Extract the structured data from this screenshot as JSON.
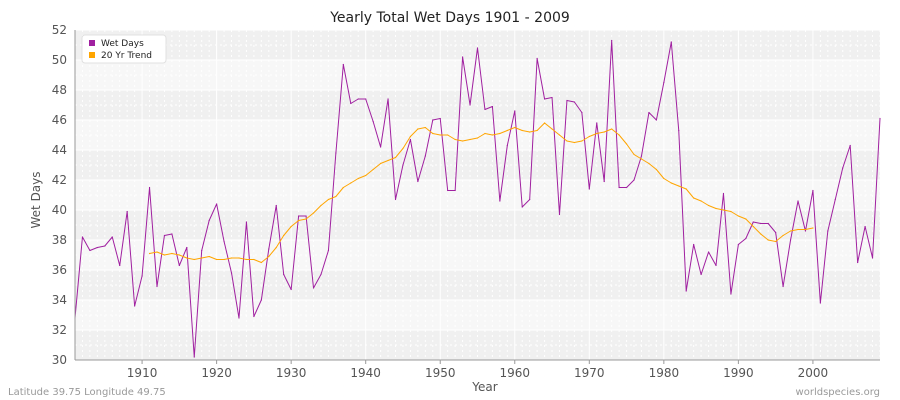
{
  "chart_data": {
    "type": "line",
    "title": "Yearly Total Wet Days 1901 - 2009",
    "xlabel": "Year",
    "ylabel": "Wet Days",
    "xlim": [
      1901,
      2009
    ],
    "ylim": [
      30,
      52
    ],
    "xticks": [
      1910,
      1920,
      1930,
      1940,
      1950,
      1960,
      1970,
      1980,
      1990,
      2000
    ],
    "yticks": [
      30,
      32,
      34,
      36,
      38,
      40,
      42,
      44,
      46,
      48,
      50,
      52
    ],
    "grid": true,
    "legend_position": "top-left",
    "series": [
      {
        "name": "Wet Days",
        "color": "#a020a0",
        "x": [
          1901,
          1902,
          1903,
          1904,
          1905,
          1906,
          1907,
          1908,
          1909,
          1910,
          1911,
          1912,
          1913,
          1914,
          1915,
          1916,
          1917,
          1918,
          1919,
          1920,
          1921,
          1922,
          1923,
          1924,
          1925,
          1926,
          1927,
          1928,
          1929,
          1930,
          1931,
          1932,
          1933,
          1934,
          1935,
          1936,
          1937,
          1938,
          1939,
          1940,
          1941,
          1942,
          1943,
          1944,
          1945,
          1946,
          1947,
          1948,
          1949,
          1950,
          1951,
          1952,
          1953,
          1954,
          1955,
          1956,
          1957,
          1958,
          1959,
          1960,
          1961,
          1962,
          1963,
          1964,
          1965,
          1966,
          1967,
          1968,
          1969,
          1970,
          1971,
          1972,
          1973,
          1974,
          1975,
          1976,
          1977,
          1978,
          1979,
          1980,
          1981,
          1982,
          1983,
          1984,
          1985,
          1986,
          1987,
          1988,
          1989,
          1990,
          1991,
          1992,
          1993,
          1994,
          1995,
          1996,
          1997,
          1998,
          1999,
          2000,
          2001,
          2002,
          2003,
          2004,
          2005,
          2006,
          2007,
          2008,
          2009
        ],
        "values": [
          32.8,
          38.2,
          37.3,
          37.5,
          37.6,
          38.2,
          36.3,
          39.9,
          33.6,
          35.6,
          41.5,
          34.9,
          38.3,
          38.4,
          36.3,
          37.5,
          30.2,
          37.3,
          39.3,
          40.4,
          37.9,
          35.8,
          32.8,
          39.2,
          32.9,
          34.0,
          37.4,
          40.3,
          35.7,
          34.7,
          39.6,
          39.6,
          34.8,
          35.7,
          37.3,
          43.8,
          49.7,
          47.1,
          47.4,
          47.4,
          45.9,
          44.2,
          47.4,
          40.7,
          43.0,
          44.7,
          41.9,
          43.6,
          46.0,
          46.1,
          41.3,
          41.3,
          50.2,
          47.0,
          50.8,
          46.7,
          46.9,
          40.6,
          44.3,
          46.6,
          40.2,
          40.7,
          50.1,
          47.4,
          47.5,
          39.7,
          47.3,
          47.2,
          46.5,
          41.4,
          45.8,
          41.9,
          51.3,
          41.5,
          41.5,
          42.0,
          43.6,
          46.5,
          46.0,
          48.5,
          51.2,
          45.3,
          34.6,
          37.7,
          35.7,
          37.2,
          36.3,
          41.1,
          34.4,
          37.7,
          38.1,
          39.2,
          39.1,
          39.1,
          38.5,
          34.9,
          38.0,
          40.6,
          38.6,
          41.3,
          33.8,
          38.6,
          40.7,
          42.8,
          44.3,
          36.5,
          38.9,
          36.8,
          46.1
        ]
      },
      {
        "name": "20 Yr Trend",
        "color": "#ffa500",
        "x": [
          1911,
          1912,
          1913,
          1914,
          1915,
          1916,
          1917,
          1918,
          1919,
          1920,
          1921,
          1922,
          1923,
          1924,
          1925,
          1926,
          1927,
          1928,
          1929,
          1930,
          1931,
          1932,
          1933,
          1934,
          1935,
          1936,
          1937,
          1938,
          1939,
          1940,
          1941,
          1942,
          1943,
          1944,
          1945,
          1946,
          1947,
          1948,
          1949,
          1950,
          1951,
          1952,
          1953,
          1954,
          1955,
          1956,
          1957,
          1958,
          1959,
          1960,
          1961,
          1962,
          1963,
          1964,
          1965,
          1966,
          1967,
          1968,
          1969,
          1970,
          1971,
          1972,
          1973,
          1974,
          1975,
          1976,
          1977,
          1978,
          1979,
          1980,
          1981,
          1982,
          1983,
          1984,
          1985,
          1986,
          1987,
          1988,
          1989,
          1990,
          1991,
          1992,
          1993,
          1994,
          1995,
          1996,
          1997,
          1998,
          1999,
          2000
        ],
        "values": [
          37.1,
          37.2,
          37.0,
          37.1,
          37.0,
          36.8,
          36.7,
          36.8,
          36.9,
          36.7,
          36.7,
          36.8,
          36.8,
          36.7,
          36.7,
          36.5,
          36.9,
          37.5,
          38.3,
          38.9,
          39.3,
          39.4,
          39.8,
          40.3,
          40.7,
          40.9,
          41.5,
          41.8,
          42.1,
          42.3,
          42.7,
          43.1,
          43.3,
          43.5,
          44.1,
          44.9,
          45.4,
          45.5,
          45.1,
          45.0,
          45.0,
          44.7,
          44.6,
          44.7,
          44.8,
          45.1,
          45.0,
          45.1,
          45.3,
          45.5,
          45.3,
          45.2,
          45.3,
          45.8,
          45.4,
          45.0,
          44.6,
          44.5,
          44.6,
          44.9,
          45.1,
          45.2,
          45.4,
          45.0,
          44.4,
          43.7,
          43.4,
          43.1,
          42.7,
          42.1,
          41.8,
          41.6,
          41.4,
          40.8,
          40.6,
          40.3,
          40.1,
          40.0,
          39.9,
          39.6,
          39.4,
          38.9,
          38.4,
          38.0,
          37.9,
          38.3,
          38.6,
          38.7,
          38.7,
          38.8
        ]
      }
    ]
  },
  "footer": {
    "location": "Latitude 39.75 Longitude 49.75",
    "source": "worldspecies.org"
  }
}
